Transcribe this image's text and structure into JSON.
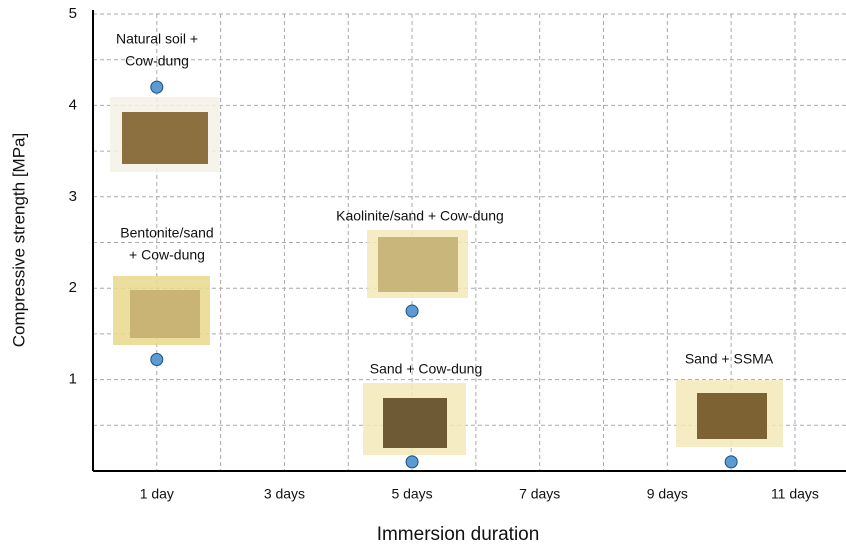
{
  "chart_data": {
    "type": "scatter",
    "y_label": "Compressive strength [MPa]",
    "x_label": "Immersion duration",
    "xlim": [
      0,
      11.8
    ],
    "ylim": [
      0,
      5
    ],
    "xticks": [
      {
        "value": 1,
        "label": "1 day"
      },
      {
        "value": 3,
        "label": "3 days"
      },
      {
        "value": 5,
        "label": "5 days"
      },
      {
        "value": 7,
        "label": "7 days"
      },
      {
        "value": 9,
        "label": "9 days"
      },
      {
        "value": 11,
        "label": "11 days"
      }
    ],
    "yticks": [
      1,
      2,
      3,
      4,
      5
    ],
    "grid": true,
    "minor_grid": true,
    "series": [
      {
        "color": "#5b9bd5",
        "x": [
          1,
          1,
          5,
          5,
          10
        ],
        "values": [
          4.2,
          1.22,
          1.75,
          0.1,
          0.1
        ],
        "labels": [
          [
            "Natural soil +",
            "Cow-dung"
          ],
          [
            "Bentonite/sand",
            "+ Cow-dung"
          ],
          [
            "Kaolinite/sand + Cow-dung"
          ],
          [
            "Sand + Cow-dung"
          ],
          [
            "Sand + SSMA"
          ]
        ]
      }
    ]
  }
}
